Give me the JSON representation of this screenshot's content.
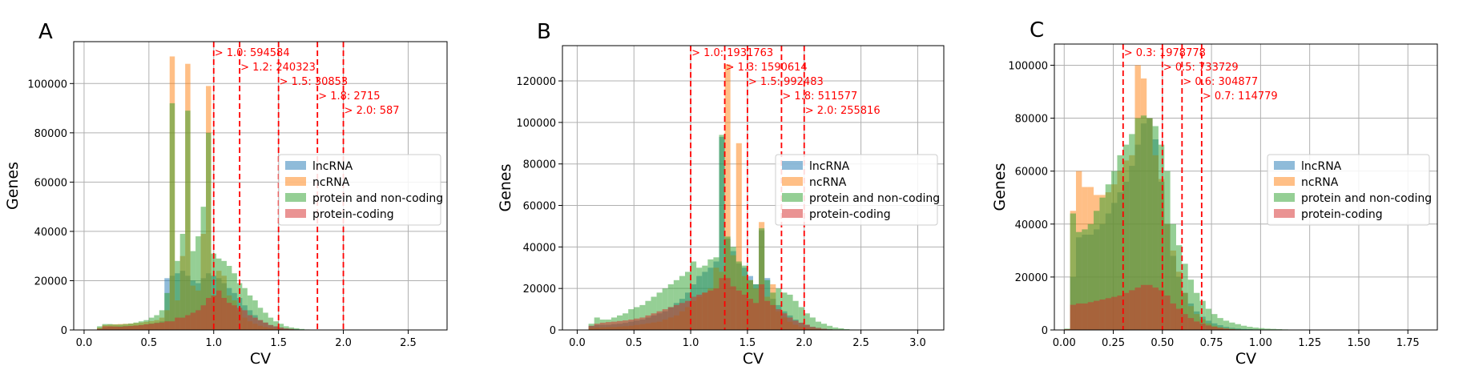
{
  "figure": {
    "background": "#ffffff",
    "ylabel": "Genes",
    "xlabel": "CV"
  },
  "series_colors": {
    "lncRNA": "#1f77b4",
    "ncRNA": "#ff7f0e",
    "protein and non-coding": "#2ca02c",
    "protein-coding": "#d62728"
  },
  "chart_data": [
    {
      "type": "histogram",
      "panel": "A",
      "xlabel": "CV",
      "ylabel": "Genes",
      "xlim": [
        -0.08,
        2.8
      ],
      "ylim": [
        0,
        117000
      ],
      "xticks": [
        0.0,
        0.5,
        1.0,
        1.5,
        2.0,
        2.5
      ],
      "xtick_labels": [
        "0.0",
        "0.5",
        "1.0",
        "1.5",
        "2.0",
        "2.5"
      ],
      "yticks": [
        0,
        20000,
        40000,
        60000,
        80000,
        100000
      ],
      "ytick_labels": [
        "0",
        "20000",
        "40000",
        "60000",
        "80000",
        "100000"
      ],
      "grid": true,
      "legend_position": "center-right",
      "bin_start": 0.1,
      "bin_width": 0.04,
      "series": [
        {
          "name": "lncRNA",
          "values": [
            500,
            1000,
            1300,
            1400,
            1500,
            1600,
            1700,
            1800,
            2000,
            2300,
            2600,
            3000,
            3500,
            21000,
            22000,
            23000,
            24000,
            22000,
            20000,
            19000,
            21000,
            23000,
            22000,
            21000,
            19000,
            17000,
            15000,
            13000,
            10000,
            8000,
            6000,
            4000,
            3000,
            2000,
            1400,
            1000,
            600,
            400,
            300,
            200,
            100,
            100,
            0,
            0,
            0,
            0,
            0,
            0,
            0,
            0,
            0,
            0,
            0,
            0,
            0,
            0,
            0,
            0,
            0,
            0,
            0,
            0,
            0,
            0,
            0,
            0,
            0,
            0
          ]
        },
        {
          "name": "ncRNA",
          "values": [
            1000,
            2000,
            2200,
            2300,
            2400,
            2500,
            2600,
            2800,
            3000,
            3300,
            3600,
            4000,
            5000,
            8000,
            111000,
            12000,
            30000,
            108000,
            18000,
            16000,
            39000,
            99000,
            14000,
            24000,
            22000,
            14000,
            12000,
            8000,
            5000,
            3500,
            2500,
            1700,
            1200,
            800,
            500,
            300,
            200,
            150,
            100,
            50,
            0,
            0,
            0,
            0,
            0,
            0,
            0,
            0,
            0,
            0,
            0,
            0,
            0,
            0,
            0,
            0,
            0,
            0,
            0,
            0,
            0,
            0,
            0,
            0,
            0,
            0,
            0,
            0
          ]
        },
        {
          "name": "protein and non-coding",
          "values": [
            1500,
            2400,
            2400,
            2200,
            2200,
            2400,
            2600,
            3000,
            3500,
            4000,
            5000,
            6000,
            8000,
            15000,
            92000,
            28000,
            39000,
            89000,
            32000,
            38000,
            50000,
            80000,
            31000,
            29000,
            28000,
            26000,
            23000,
            19000,
            17000,
            14000,
            12000,
            9000,
            7000,
            5000,
            3500,
            2500,
            1500,
            1000,
            700,
            400,
            200,
            100,
            0,
            0,
            0,
            0,
            0,
            0,
            0,
            0,
            0,
            0,
            0,
            0,
            0,
            0,
            0,
            0,
            0,
            0,
            0,
            0,
            0,
            0,
            0,
            0,
            0,
            0
          ]
        },
        {
          "name": "protein-coding",
          "values": [
            500,
            1500,
            1500,
            1400,
            1300,
            1500,
            1600,
            1800,
            2000,
            2300,
            2500,
            2800,
            3000,
            3500,
            3500,
            5000,
            5000,
            6000,
            7000,
            8000,
            10000,
            13000,
            14000,
            16000,
            13000,
            11000,
            10000,
            9000,
            8000,
            6000,
            5000,
            4000,
            3000,
            2000,
            1500,
            1000,
            600,
            400,
            200,
            100,
            0,
            0,
            0,
            0,
            0,
            0,
            0,
            0,
            0,
            0,
            0,
            0,
            0,
            0,
            0,
            0,
            0,
            0,
            0,
            0,
            0,
            0,
            0,
            0,
            0,
            0,
            0,
            0
          ]
        }
      ],
      "thresholds": [
        {
          "x": 1.0,
          "label": "> 1.0: 594584"
        },
        {
          "x": 1.2,
          "label": "> 1.2: 240323"
        },
        {
          "x": 1.5,
          "label": "> 1.5: 30853"
        },
        {
          "x": 1.8,
          "label": "> 1.8: 2715"
        },
        {
          "x": 2.0,
          "label": "> 2.0: 587"
        }
      ]
    },
    {
      "type": "histogram",
      "panel": "B",
      "xlabel": "CV",
      "ylabel": "Genes",
      "xlim": [
        -0.13,
        3.23
      ],
      "ylim": [
        0,
        137000
      ],
      "xticks": [
        0.0,
        0.5,
        1.0,
        1.5,
        2.0,
        2.5,
        3.0
      ],
      "xtick_labels": [
        "0.0",
        "0.5",
        "1.0",
        "1.5",
        "2.0",
        "2.5",
        "3.0"
      ],
      "yticks": [
        0,
        20000,
        40000,
        60000,
        80000,
        100000,
        120000
      ],
      "ytick_labels": [
        "0",
        "20000",
        "40000",
        "60000",
        "80000",
        "100000",
        "120000"
      ],
      "grid": true,
      "legend_position": "center-right",
      "bin_start": 0.1,
      "bin_width": 0.05,
      "series": [
        {
          "name": "lncRNA",
          "values": [
            2000,
            2400,
            2500,
            2500,
            2800,
            3000,
            3400,
            4000,
            4500,
            5000,
            6000,
            7000,
            8000,
            9000,
            11000,
            13000,
            15000,
            18000,
            22000,
            26000,
            28000,
            30000,
            33000,
            93000,
            44000,
            38000,
            32000,
            30000,
            26000,
            22000,
            48000,
            25000,
            15000,
            12000,
            9000,
            7000,
            5000,
            3500,
            2500,
            1500,
            1000,
            600,
            400,
            200,
            100,
            100,
            0,
            0,
            0,
            0,
            0,
            0,
            0,
            0,
            0,
            0,
            0,
            0,
            0,
            0,
            0,
            0,
            0,
            0,
            0,
            0,
            0,
            0,
            0,
            0
          ]
        },
        {
          "name": "ncRNA",
          "values": [
            1000,
            1200,
            1300,
            1400,
            1400,
            1600,
            1800,
            2000,
            2400,
            2800,
            3200,
            3600,
            4000,
            5000,
            6000,
            7000,
            9000,
            11000,
            14000,
            16000,
            18000,
            20000,
            30000,
            28000,
            128000,
            36000,
            90000,
            26000,
            24000,
            20000,
            52000,
            16000,
            22000,
            9000,
            6000,
            4000,
            2500,
            1600,
            1000,
            600,
            400,
            200,
            100,
            0,
            0,
            0,
            0,
            0,
            0,
            0,
            0,
            0,
            0,
            0,
            0,
            0,
            0,
            0,
            0,
            0,
            0,
            0,
            0,
            0,
            0,
            0,
            0,
            0,
            0,
            0
          ]
        },
        {
          "name": "protein and non-coding",
          "values": [
            3000,
            6000,
            5000,
            5000,
            6000,
            7000,
            8000,
            10000,
            11000,
            12000,
            14000,
            16000,
            18000,
            20000,
            22000,
            24000,
            26000,
            28000,
            33000,
            30000,
            31000,
            34000,
            35000,
            94000,
            45000,
            40000,
            33000,
            31000,
            24000,
            22000,
            49000,
            24000,
            18000,
            20000,
            18000,
            17000,
            14000,
            11000,
            8000,
            6000,
            4000,
            3000,
            2000,
            1200,
            800,
            400,
            200,
            100,
            0,
            0,
            0,
            0,
            0,
            0,
            0,
            0,
            0,
            0,
            0,
            0,
            0,
            0,
            0,
            0,
            0,
            0,
            0,
            0,
            0,
            0
          ]
        },
        {
          "name": "protein-coding",
          "values": [
            2000,
            3000,
            3500,
            3800,
            4000,
            4300,
            4600,
            5000,
            5500,
            6000,
            7000,
            8000,
            9000,
            10000,
            11000,
            12000,
            13000,
            14000,
            16000,
            17000,
            18000,
            19000,
            20000,
            25000,
            25000,
            21000,
            19000,
            17000,
            15000,
            13000,
            22000,
            14000,
            12000,
            10000,
            8000,
            6000,
            4500,
            3500,
            2500,
            1500,
            1000,
            600,
            300,
            200,
            100,
            0,
            0,
            0,
            0,
            0,
            0,
            0,
            0,
            0,
            0,
            0,
            0,
            0,
            0,
            0,
            0,
            0,
            0,
            0,
            0,
            0,
            0,
            0,
            0,
            0
          ]
        }
      ],
      "thresholds": [
        {
          "x": 1.0,
          "label": "> 1.0: 1931763"
        },
        {
          "x": 1.3,
          "label": "> 1.3: 1590614"
        },
        {
          "x": 1.5,
          "label": "> 1.5: 992483"
        },
        {
          "x": 1.8,
          "label": "> 1.8: 511577"
        },
        {
          "x": 2.0,
          "label": "> 2.0: 255816"
        }
      ]
    },
    {
      "type": "histogram",
      "panel": "C",
      "xlabel": "CV",
      "ylabel": "Genes",
      "xlim": [
        -0.05,
        1.9
      ],
      "ylim": [
        0,
        108000
      ],
      "xticks": [
        0.0,
        0.25,
        0.5,
        0.75,
        1.0,
        1.25,
        1.5,
        1.75
      ],
      "xtick_labels": [
        "0.00",
        "0.25",
        "0.50",
        "0.75",
        "1.00",
        "1.25",
        "1.50",
        "1.75"
      ],
      "yticks": [
        0,
        20000,
        40000,
        60000,
        80000,
        100000
      ],
      "ytick_labels": [
        "0",
        "20000",
        "40000",
        "60000",
        "80000",
        "100000"
      ],
      "grid": true,
      "legend_position": "center-right",
      "bin_start": 0.0,
      "bin_width": 0.03,
      "series": [
        {
          "name": "lncRNA",
          "values": [
            200,
            20000,
            35000,
            36000,
            36000,
            38000,
            40000,
            44000,
            48000,
            52000,
            56000,
            62000,
            70000,
            78000,
            80000,
            72000,
            56000,
            40000,
            28000,
            20000,
            14000,
            10000,
            7000,
            5000,
            3500,
            2500,
            1800,
            1200,
            800,
            600,
            400,
            300,
            200,
            100,
            100,
            0,
            0,
            0,
            0,
            0,
            0,
            0,
            0,
            0,
            0,
            0,
            0,
            0,
            0,
            0,
            0,
            0,
            0,
            0,
            0,
            0,
            0,
            0,
            0,
            0,
            0,
            0,
            0,
            0,
            0
          ]
        },
        {
          "name": "ncRNA",
          "values": [
            200,
            45000,
            60000,
            54000,
            54000,
            51000,
            51000,
            52000,
            55000,
            60000,
            64000,
            66000,
            100000,
            95000,
            80000,
            66000,
            57000,
            40000,
            30000,
            22000,
            14000,
            9000,
            6000,
            4000,
            2500,
            1600,
            1000,
            600,
            400,
            200,
            100,
            0,
            0,
            0,
            0,
            0,
            0,
            0,
            0,
            0,
            0,
            0,
            0,
            0,
            0,
            0,
            0,
            0,
            0,
            0,
            0,
            0,
            0,
            0,
            0,
            0,
            0,
            0,
            0,
            0,
            0,
            0,
            0,
            0,
            0
          ]
        },
        {
          "name": "protein and non-coding",
          "values": [
            500,
            44000,
            37000,
            38000,
            40000,
            45000,
            50000,
            55000,
            60000,
            66000,
            70000,
            74000,
            80000,
            81000,
            80000,
            77000,
            70000,
            60000,
            40000,
            32000,
            25000,
            19000,
            14000,
            11000,
            8000,
            6000,
            4500,
            3500,
            2800,
            2200,
            1600,
            1200,
            900,
            700,
            500,
            400,
            300,
            200,
            150,
            100,
            0,
            0,
            0,
            0,
            0,
            0,
            0,
            0,
            0,
            0,
            0,
            0,
            0,
            0,
            0,
            0,
            0,
            0,
            0,
            0,
            0,
            0,
            0,
            0,
            0
          ]
        },
        {
          "name": "protein-coding",
          "values": [
            300,
            9500,
            10000,
            10000,
            10500,
            11000,
            11500,
            12000,
            12500,
            13000,
            14000,
            15000,
            16000,
            17000,
            17000,
            16000,
            15000,
            13000,
            10000,
            8000,
            6000,
            4500,
            3200,
            2400,
            1700,
            1200,
            800,
            500,
            300,
            200,
            100,
            0,
            0,
            0,
            0,
            0,
            0,
            0,
            0,
            0,
            0,
            0,
            0,
            0,
            0,
            0,
            0,
            0,
            0,
            0,
            0,
            0,
            0,
            0,
            0,
            0,
            0,
            0,
            0,
            0,
            0,
            0,
            0,
            0,
            0
          ]
        }
      ],
      "thresholds": [
        {
          "x": 0.3,
          "label": "> 0.3: 1978778"
        },
        {
          "x": 0.5,
          "label": "> 0.5: 733729"
        },
        {
          "x": 0.6,
          "label": "> 0.6: 304877"
        },
        {
          "x": 0.7,
          "label": "> 0.7: 114779"
        }
      ]
    }
  ]
}
